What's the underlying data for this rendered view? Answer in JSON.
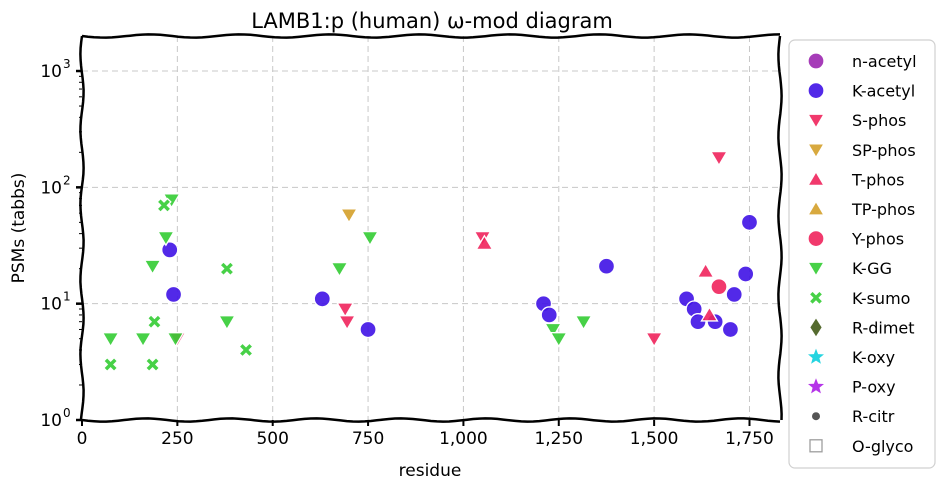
{
  "chart_data": {
    "type": "scatter",
    "title": "LAMB1:p (human) ω-mod diagram",
    "xlabel": "residue",
    "ylabel": "PSMs (tabbs)",
    "xlim": [
      0,
      1830
    ],
    "ylim": [
      1,
      2000
    ],
    "yscale": "log",
    "grid": true,
    "legend_position": "right",
    "x_ticks": [
      {
        "value": 0,
        "label": "0"
      },
      {
        "value": 250,
        "label": "250"
      },
      {
        "value": 500,
        "label": "500"
      },
      {
        "value": 750,
        "label": "750"
      },
      {
        "value": 1000,
        "label": "1,000"
      },
      {
        "value": 1250,
        "label": "1,250"
      },
      {
        "value": 1500,
        "label": "1,500"
      },
      {
        "value": 1750,
        "label": "1,750"
      }
    ],
    "y_ticks": [
      {
        "value": 1,
        "base": "10",
        "exp": "0"
      },
      {
        "value": 10,
        "base": "10",
        "exp": "1"
      },
      {
        "value": 100,
        "base": "10",
        "exp": "2"
      },
      {
        "value": 1000,
        "base": "10",
        "exp": "3"
      }
    ],
    "series": [
      {
        "name": "n-acetyl",
        "marker": "circle",
        "color": "#9c27b0",
        "points": []
      },
      {
        "name": "K-acetyl",
        "marker": "circle",
        "color": "#3f12e6",
        "points": [
          [
            230,
            29
          ],
          [
            240,
            12
          ],
          [
            630,
            11
          ],
          [
            750,
            6
          ],
          [
            1210,
            10
          ],
          [
            1225,
            8
          ],
          [
            1375,
            21
          ],
          [
            1585,
            11
          ],
          [
            1605,
            9
          ],
          [
            1615,
            7
          ],
          [
            1660,
            7
          ],
          [
            1700,
            6
          ],
          [
            1710,
            12
          ],
          [
            1740,
            18
          ],
          [
            1750,
            50
          ]
        ]
      },
      {
        "name": "S-phos",
        "marker": "triangle-down",
        "color": "#f0245c",
        "points": [
          [
            250,
            5
          ],
          [
            690,
            9
          ],
          [
            695,
            7
          ],
          [
            1050,
            37
          ],
          [
            1500,
            5
          ],
          [
            1670,
            180
          ]
        ]
      },
      {
        "name": "SP-phos",
        "marker": "triangle-down",
        "color": "#d4a02a",
        "points": [
          [
            700,
            58
          ]
        ]
      },
      {
        "name": "T-phos",
        "marker": "triangle-up",
        "color": "#f0245c",
        "points": [
          [
            1055,
            33
          ],
          [
            1635,
            19
          ],
          [
            1645,
            8
          ]
        ]
      },
      {
        "name": "TP-phos",
        "marker": "triangle-up",
        "color": "#d4a02a",
        "points": []
      },
      {
        "name": "Y-phos",
        "marker": "circle",
        "color": "#f0245c",
        "points": [
          [
            1670,
            14
          ]
        ]
      },
      {
        "name": "K-GG",
        "marker": "triangle-down",
        "color": "#33cc33",
        "points": [
          [
            75,
            5
          ],
          [
            160,
            5
          ],
          [
            185,
            21
          ],
          [
            220,
            37
          ],
          [
            235,
            78
          ],
          [
            245,
            5
          ],
          [
            380,
            7
          ],
          [
            675,
            20
          ],
          [
            755,
            37
          ],
          [
            1235,
            6
          ],
          [
            1250,
            5
          ],
          [
            1315,
            7
          ]
        ]
      },
      {
        "name": "K-sumo",
        "marker": "x",
        "color": "#33cc33",
        "points": [
          [
            75,
            3
          ],
          [
            185,
            3
          ],
          [
            190,
            7
          ],
          [
            215,
            70
          ],
          [
            380,
            20
          ],
          [
            430,
            4
          ]
        ]
      },
      {
        "name": "R-dimet",
        "marker": "diamond",
        "color": "#556b2f",
        "points": []
      },
      {
        "name": "K-oxy",
        "marker": "star",
        "color": "#26d4e0",
        "points": []
      },
      {
        "name": "P-oxy",
        "marker": "star",
        "color": "#b535e8",
        "points": []
      },
      {
        "name": "R-citr",
        "marker": "small-circle",
        "color": "#555555",
        "points": []
      },
      {
        "name": "O-glyco",
        "marker": "square-open",
        "color": "#9e9e9e",
        "points": []
      }
    ]
  }
}
